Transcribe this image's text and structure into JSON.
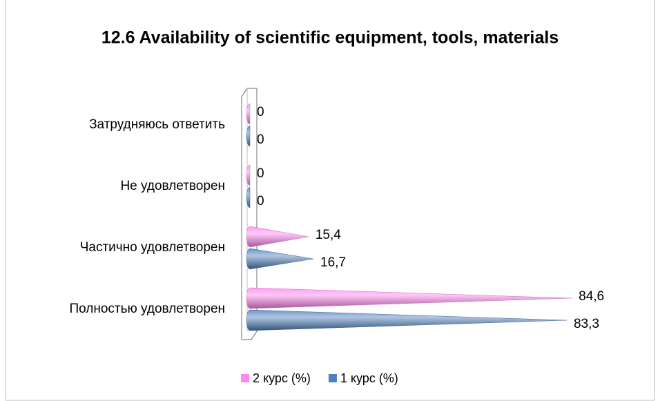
{
  "chart_data": {
    "type": "cone-bar",
    "title": "12.6 Availability of scientific equipment, tools, materials",
    "categories": [
      "Полностью удовлетворен",
      "Частично удовлетворен",
      "Не удовлетворен",
      "Затрудняюсь ответить"
    ],
    "series": [
      {
        "name": "2 курс (%)",
        "color": "#ff88ee",
        "values": [
          84.6,
          15.4,
          0,
          0
        ],
        "value_labels": [
          "84,6",
          "15,4",
          "0",
          "0"
        ]
      },
      {
        "name": "1 курс (%)",
        "color": "#4f81bd",
        "values": [
          83.3,
          16.7,
          0,
          0
        ],
        "value_labels": [
          "83,3",
          "16,7",
          "0",
          "0"
        ]
      }
    ],
    "xlim": [
      0,
      100
    ],
    "legend": "bottom"
  }
}
